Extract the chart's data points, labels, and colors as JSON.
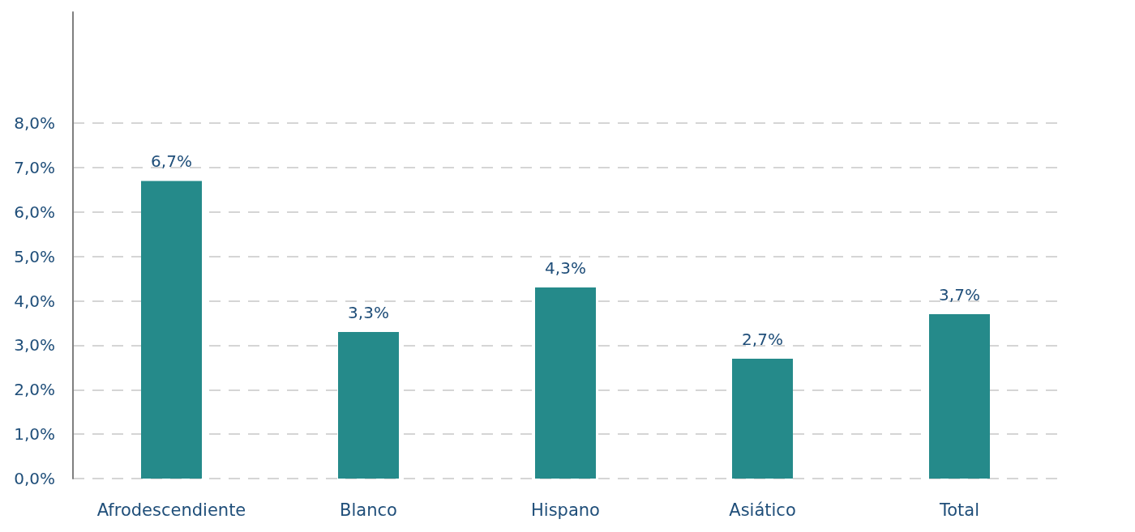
{
  "chart_data": {
    "type": "bar",
    "categories": [
      "Afrodescendiente",
      "Blanco",
      "Hispano",
      "Asiático",
      "Total"
    ],
    "values": [
      6.7,
      3.3,
      4.3,
      2.7,
      3.7
    ],
    "value_labels": [
      "6,7%",
      "3,3%",
      "4,3%",
      "2,7%",
      "3,7%"
    ],
    "color": "#258a8a",
    "ylim": [
      0,
      10.5
    ],
    "yticks": [
      {
        "value": 0,
        "label": "0,0%"
      },
      {
        "value": 1,
        "label": "1,0%"
      },
      {
        "value": 2,
        "label": "2,0%"
      },
      {
        "value": 3,
        "label": "3,0%"
      },
      {
        "value": 4,
        "label": "4,0%"
      },
      {
        "value": 5,
        "label": "5,0%"
      },
      {
        "value": 6,
        "label": "6,0%"
      },
      {
        "value": 7,
        "label": "7,0%"
      },
      {
        "value": 8,
        "label": "8,0%"
      }
    ],
    "grid": "y"
  }
}
